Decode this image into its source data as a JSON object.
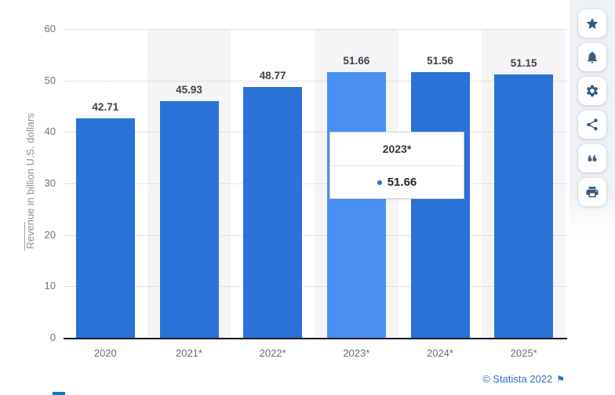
{
  "chart_data": {
    "type": "bar",
    "title": "",
    "categories": [
      "2020",
      "2021*",
      "2022*",
      "2023*",
      "2024*",
      "2025*"
    ],
    "values": [
      42.71,
      45.93,
      48.77,
      51.66,
      51.56,
      51.15
    ],
    "value_labels": [
      "42.71",
      "45.93",
      "48.77",
      "51.66",
      "51.56",
      "51.15"
    ],
    "highlighted_index": 3,
    "xlabel": "",
    "ylabel": "Revenue in billion U.S. dollars",
    "ylim": [
      0,
      60
    ],
    "yticks": [
      0,
      10,
      20,
      30,
      40,
      50,
      60
    ],
    "grid": "horizontal-dotted",
    "legend": "none",
    "colors": {
      "bar": "#2a72d8",
      "bar_highlighted": "#4a90f2",
      "band": "#f5f5f7",
      "gridline": "#c9c9c9",
      "axis_line": "#17191c",
      "value_label": "#3f4347",
      "tick_label": "#6d747c"
    }
  },
  "tooltip": {
    "title": "2023*",
    "value": "51.66",
    "marker_color": "#2a72d8"
  },
  "sidebar": {
    "icon_color": "#3a5a78",
    "buttons": [
      {
        "icon": "star-icon"
      },
      {
        "icon": "bell-icon"
      },
      {
        "icon": "gear-icon"
      },
      {
        "icon": "share-icon"
      },
      {
        "icon": "quote-icon"
      },
      {
        "icon": "printer-icon"
      }
    ]
  },
  "footer": {
    "attribution": "© Statista 2022",
    "flag_glyph": "⚑",
    "link_color": "#2a72c8"
  }
}
